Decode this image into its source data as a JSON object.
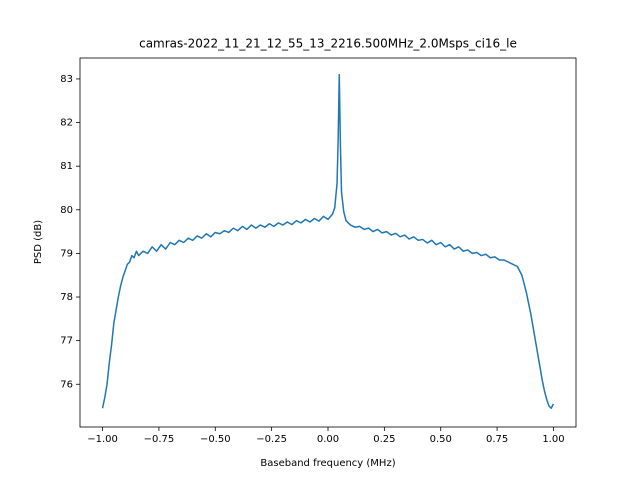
{
  "chart_data": {
    "type": "line",
    "title": "camras-2022_11_21_12_55_13_2216.500MHz_2.0Msps_ci16_le",
    "xlabel": "Baseband frequency (MHz)",
    "ylabel": "PSD (dB)",
    "xlim": [
      -1.1,
      1.1
    ],
    "ylim": [
      75.02,
      83.48
    ],
    "xticks": [
      {
        "value": -1,
        "label": "−1.00"
      },
      {
        "value": -0.75,
        "label": "−0.75"
      },
      {
        "value": -0.5,
        "label": "−0.50"
      },
      {
        "value": -0.25,
        "label": "−0.25"
      },
      {
        "value": 0,
        "label": "0.00"
      },
      {
        "value": 0.25,
        "label": "0.25"
      },
      {
        "value": 0.5,
        "label": "0.50"
      },
      {
        "value": 0.75,
        "label": "0.75"
      },
      {
        "value": 1,
        "label": "1.00"
      }
    ],
    "yticks": [
      76,
      77,
      78,
      79,
      80,
      81,
      82,
      83
    ],
    "grid": false,
    "series": [
      {
        "color": "#1f77b4",
        "x": [
          -1.0,
          -0.99,
          -0.98,
          -0.97,
          -0.96,
          -0.95,
          -0.94,
          -0.93,
          -0.92,
          -0.91,
          -0.9,
          -0.89,
          -0.88,
          -0.87,
          -0.86,
          -0.85,
          -0.84,
          -0.82,
          -0.8,
          -0.78,
          -0.76,
          -0.74,
          -0.72,
          -0.7,
          -0.68,
          -0.66,
          -0.64,
          -0.62,
          -0.6,
          -0.58,
          -0.56,
          -0.54,
          -0.52,
          -0.5,
          -0.48,
          -0.46,
          -0.44,
          -0.42,
          -0.4,
          -0.38,
          -0.36,
          -0.34,
          -0.32,
          -0.3,
          -0.28,
          -0.26,
          -0.24,
          -0.22,
          -0.2,
          -0.18,
          -0.16,
          -0.14,
          -0.12,
          -0.1,
          -0.08,
          -0.06,
          -0.04,
          -0.02,
          0.0,
          0.02,
          0.03,
          0.04,
          0.045,
          0.05,
          0.055,
          0.06,
          0.07,
          0.08,
          0.1,
          0.12,
          0.14,
          0.16,
          0.18,
          0.2,
          0.22,
          0.24,
          0.26,
          0.28,
          0.3,
          0.32,
          0.34,
          0.36,
          0.38,
          0.4,
          0.42,
          0.44,
          0.46,
          0.48,
          0.5,
          0.52,
          0.54,
          0.56,
          0.58,
          0.6,
          0.62,
          0.64,
          0.66,
          0.68,
          0.7,
          0.72,
          0.74,
          0.76,
          0.78,
          0.8,
          0.82,
          0.84,
          0.85,
          0.86,
          0.87,
          0.88,
          0.89,
          0.9,
          0.91,
          0.92,
          0.93,
          0.94,
          0.95,
          0.96,
          0.97,
          0.98,
          0.99,
          1.0
        ],
        "values": [
          75.45,
          75.7,
          76.0,
          76.5,
          76.9,
          77.4,
          77.7,
          78.0,
          78.25,
          78.45,
          78.6,
          78.75,
          78.8,
          78.95,
          78.9,
          79.05,
          78.95,
          79.05,
          79.0,
          79.15,
          79.05,
          79.2,
          79.1,
          79.25,
          79.2,
          79.3,
          79.25,
          79.35,
          79.3,
          79.4,
          79.35,
          79.45,
          79.38,
          79.48,
          79.45,
          79.52,
          79.48,
          79.58,
          79.52,
          79.62,
          79.55,
          79.65,
          79.58,
          79.65,
          79.6,
          79.68,
          79.62,
          79.7,
          79.65,
          79.72,
          79.66,
          79.75,
          79.7,
          79.78,
          79.72,
          79.8,
          79.74,
          79.85,
          79.78,
          79.9,
          80.05,
          80.6,
          81.6,
          83.1,
          81.5,
          80.4,
          79.95,
          79.75,
          79.65,
          79.6,
          79.62,
          79.55,
          79.58,
          79.5,
          79.55,
          79.47,
          79.5,
          79.42,
          79.46,
          79.38,
          79.42,
          79.33,
          79.38,
          79.3,
          79.32,
          79.24,
          79.3,
          79.2,
          79.25,
          79.15,
          79.2,
          79.1,
          79.15,
          79.05,
          79.08,
          79.0,
          79.02,
          78.95,
          78.98,
          78.9,
          78.92,
          78.85,
          78.85,
          78.8,
          78.75,
          78.7,
          78.6,
          78.5,
          78.3,
          78.1,
          77.85,
          77.6,
          77.3,
          77.0,
          76.7,
          76.4,
          76.1,
          75.85,
          75.65,
          75.5,
          75.45,
          75.55
        ]
      }
    ]
  }
}
